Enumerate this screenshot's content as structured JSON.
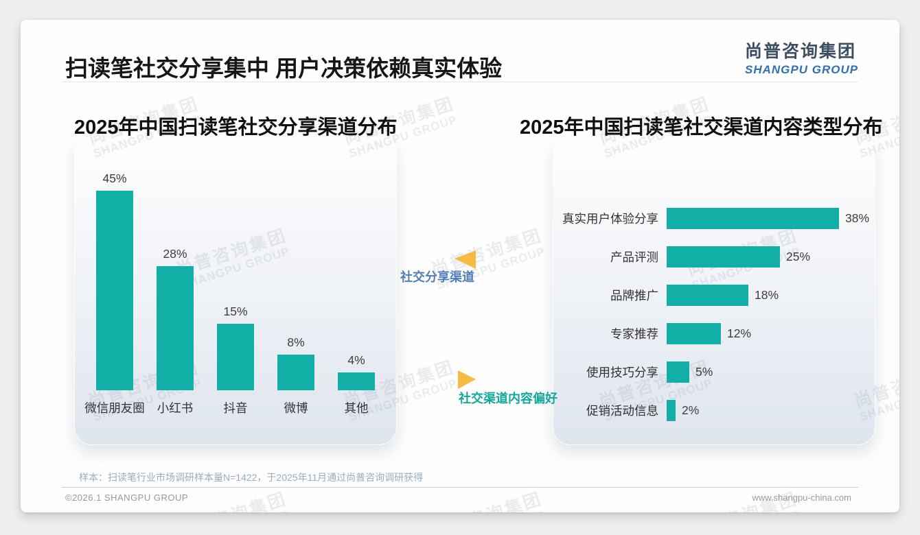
{
  "header": {
    "main_title": "扫读笔社交分享集中 用户决策依赖真实体验",
    "logo_cn": "尚普咨询集团",
    "logo_en": "SHANGPU GROUP"
  },
  "watermark": {
    "line1": "尚普咨询集团",
    "line2": "SHANGPU GROUP"
  },
  "annotations": {
    "share_channels_label": "社交分享渠道",
    "content_preference_label": "社交渠道内容偏好"
  },
  "footer": {
    "sample_note": "样本：扫读笔行业市场调研样本量N=1422，于2025年11月通过尚普咨询调研获得",
    "copyright": "©2026.1 SHANGPU GROUP",
    "website": "www.shangpu-china.com"
  },
  "colors": {
    "bar_teal": "#12afa6",
    "arrow_orange": "#f6ba45",
    "share_label_blue": "#527eb8",
    "preference_label_teal": "#10a89b"
  },
  "chart_data": [
    {
      "type": "bar",
      "title": "2025年中国扫读笔社交分享渠道分布",
      "categories": [
        "微信朋友圈",
        "小红书",
        "抖音",
        "微博",
        "其他"
      ],
      "values": [
        45,
        28,
        15,
        8,
        4
      ],
      "unit": "%",
      "ylim": [
        0,
        50
      ],
      "grid": false,
      "legend": false,
      "data_labels": true
    },
    {
      "type": "bar-horizontal",
      "title": "2025年中国扫读笔社交渠道内容类型分布",
      "categories": [
        "真实用户体验分享",
        "产品评测",
        "品牌推广",
        "专家推荐",
        "使用技巧分享",
        "促销活动信息"
      ],
      "values": [
        38,
        25,
        18,
        12,
        5,
        2
      ],
      "unit": "%",
      "xlim": [
        0,
        40
      ],
      "grid": false,
      "legend": false,
      "data_labels": true
    }
  ]
}
